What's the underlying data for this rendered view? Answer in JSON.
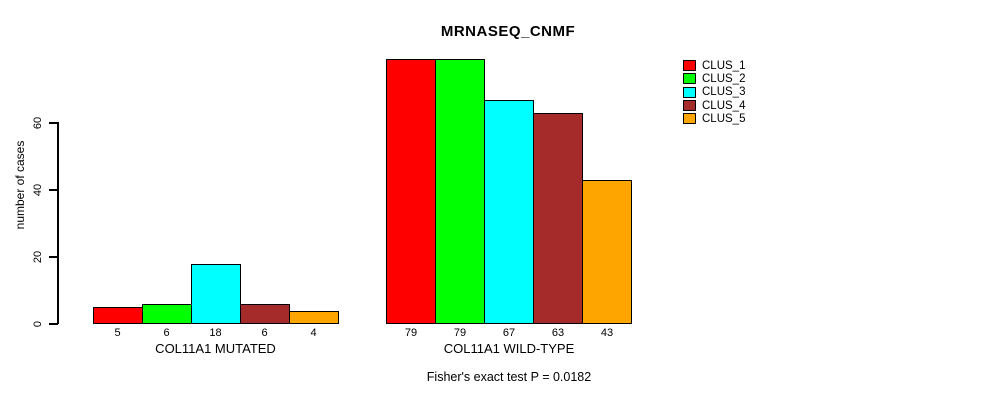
{
  "chart_data": {
    "type": "bar",
    "title": "MRNASEQ_CNMF",
    "ylabel": "number of cases",
    "xlabel": "",
    "y_ticks": [
      0,
      20,
      40,
      60
    ],
    "ylim": [
      0,
      80
    ],
    "grid": false,
    "legend_position": "right",
    "clusters": [
      "CLUS_1",
      "CLUS_2",
      "CLUS_3",
      "CLUS_4",
      "CLUS_5"
    ],
    "colors": [
      "#ff0000",
      "#00ff00",
      "#00ffff",
      "#a52a2a",
      "#ffa500"
    ],
    "groups": [
      {
        "label": "COL11A1 MUTATED",
        "values": [
          5,
          6,
          18,
          6,
          4
        ]
      },
      {
        "label": "COL11A1 WILD-TYPE",
        "values": [
          79,
          79,
          67,
          63,
          43
        ]
      }
    ],
    "annotation": "Fisher's exact test P = 0.0182",
    "background_color": "#ffffff",
    "text_color": "#000000"
  }
}
